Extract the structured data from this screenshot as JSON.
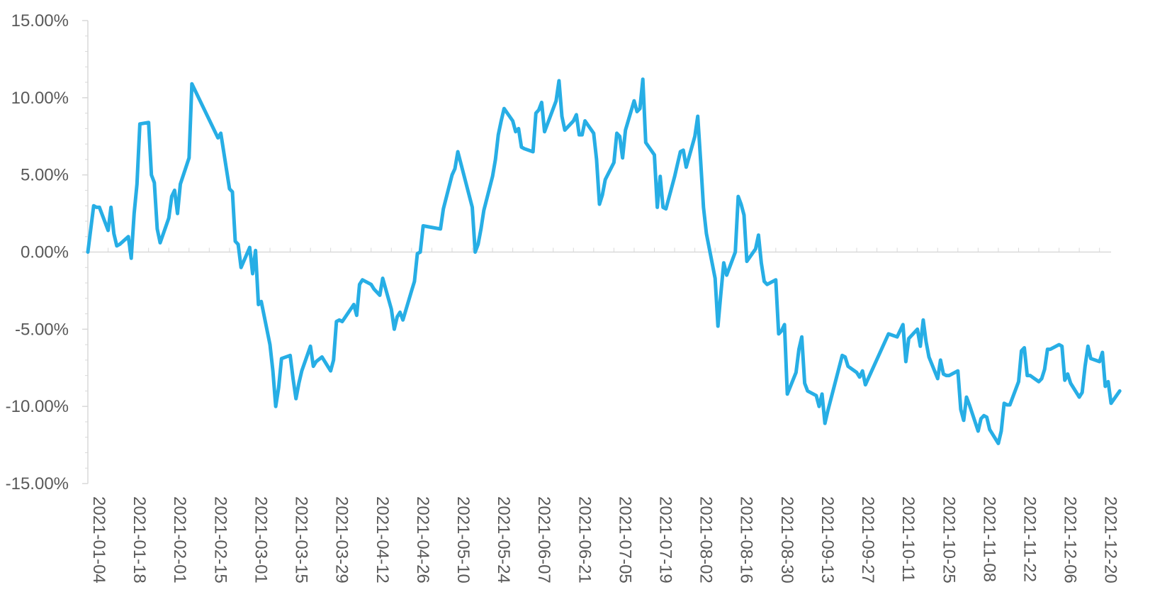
{
  "chart_data": {
    "type": "line",
    "title": "",
    "xlabel": "",
    "ylabel": "",
    "ylim": [
      -0.15,
      0.15
    ],
    "y_tick_values": [
      -0.15,
      -0.1,
      -0.05,
      0.0,
      0.05,
      0.1,
      0.15
    ],
    "y_tick_labels": [
      "-15.00%",
      "-10.00%",
      "-5.00%",
      "0.00%",
      "5.00%",
      "10.00%",
      "15.00%"
    ],
    "x_range": [
      "2021-01-04",
      "2021-12-24"
    ],
    "x_tick_labels": [
      "2021-01-04",
      "2021-01-18",
      "2021-02-01",
      "2021-02-15",
      "2021-03-01",
      "2021-03-15",
      "2021-03-29",
      "2021-04-12",
      "2021-04-26",
      "2021-05-10",
      "2021-05-24",
      "2021-06-07",
      "2021-06-21",
      "2021-07-05",
      "2021-07-19",
      "2021-08-02",
      "2021-08-16",
      "2021-08-30",
      "2021-09-13",
      "2021-09-27",
      "2021-10-11",
      "2021-10-25",
      "2021-11-08",
      "2021-11-22",
      "2021-12-06",
      "2021-12-20"
    ],
    "grid": false,
    "legend": "none",
    "color": "#27aee5",
    "series": [
      {
        "points": [
          [
            "2021-01-04",
            0.0
          ],
          [
            "2021-01-06",
            0.03
          ],
          [
            "2021-01-07",
            0.029
          ],
          [
            "2021-01-08",
            0.029
          ],
          [
            "2021-01-11",
            0.014
          ],
          [
            "2021-01-12",
            0.029
          ],
          [
            "2021-01-13",
            0.012
          ],
          [
            "2021-01-14",
            0.004
          ],
          [
            "2021-01-15",
            0.005
          ],
          [
            "2021-01-18",
            0.01
          ],
          [
            "2021-01-19",
            -0.004
          ],
          [
            "2021-01-20",
            0.025
          ],
          [
            "2021-01-21",
            0.044
          ],
          [
            "2021-01-22",
            0.083
          ],
          [
            "2021-01-25",
            0.084
          ],
          [
            "2021-01-26",
            0.05
          ],
          [
            "2021-01-27",
            0.045
          ],
          [
            "2021-01-28",
            0.015
          ],
          [
            "2021-01-29",
            0.006
          ],
          [
            "2021-02-01",
            0.022
          ],
          [
            "2021-02-02",
            0.036
          ],
          [
            "2021-02-03",
            0.04
          ],
          [
            "2021-02-04",
            0.025
          ],
          [
            "2021-02-05",
            0.044
          ],
          [
            "2021-02-08",
            0.061
          ],
          [
            "2021-02-09",
            0.109
          ],
          [
            "2021-02-18",
            0.074
          ],
          [
            "2021-02-19",
            0.077
          ],
          [
            "2021-02-22",
            0.041
          ],
          [
            "2021-02-23",
            0.039
          ],
          [
            "2021-02-24",
            0.007
          ],
          [
            "2021-02-25",
            0.005
          ],
          [
            "2021-02-26",
            -0.01
          ],
          [
            "2021-03-01",
            0.003
          ],
          [
            "2021-03-02",
            -0.014
          ],
          [
            "2021-03-03",
            0.001
          ],
          [
            "2021-03-04",
            -0.034
          ],
          [
            "2021-03-05",
            -0.032
          ],
          [
            "2021-03-08",
            -0.06
          ],
          [
            "2021-03-09",
            -0.077
          ],
          [
            "2021-03-10",
            -0.1
          ],
          [
            "2021-03-11",
            -0.088
          ],
          [
            "2021-03-12",
            -0.069
          ],
          [
            "2021-03-15",
            -0.067
          ],
          [
            "2021-03-16",
            -0.082
          ],
          [
            "2021-03-17",
            -0.095
          ],
          [
            "2021-03-18",
            -0.085
          ],
          [
            "2021-03-19",
            -0.077
          ],
          [
            "2021-03-22",
            -0.061
          ],
          [
            "2021-03-23",
            -0.074
          ],
          [
            "2021-03-24",
            -0.071
          ],
          [
            "2021-03-26",
            -0.068
          ],
          [
            "2021-03-29",
            -0.077
          ],
          [
            "2021-03-30",
            -0.07
          ],
          [
            "2021-03-31",
            -0.045
          ],
          [
            "2021-04-01",
            -0.044
          ],
          [
            "2021-04-02",
            -0.045
          ],
          [
            "2021-04-06",
            -0.034
          ],
          [
            "2021-04-07",
            -0.041
          ],
          [
            "2021-04-08",
            -0.021
          ],
          [
            "2021-04-09",
            -0.018
          ],
          [
            "2021-04-12",
            -0.021
          ],
          [
            "2021-04-13",
            -0.024
          ],
          [
            "2021-04-14",
            -0.026
          ],
          [
            "2021-04-15",
            -0.028
          ],
          [
            "2021-04-16",
            -0.017
          ],
          [
            "2021-04-19",
            -0.037
          ],
          [
            "2021-04-20",
            -0.05
          ],
          [
            "2021-04-21",
            -0.042
          ],
          [
            "2021-04-22",
            -0.039
          ],
          [
            "2021-04-23",
            -0.044
          ],
          [
            "2021-04-26",
            -0.025
          ],
          [
            "2021-04-27",
            -0.019
          ],
          [
            "2021-04-28",
            -0.001
          ],
          [
            "2021-04-29",
            0.0
          ],
          [
            "2021-04-30",
            0.017
          ],
          [
            "2021-05-06",
            0.015
          ],
          [
            "2021-05-07",
            0.028
          ],
          [
            "2021-05-10",
            0.05
          ],
          [
            "2021-05-11",
            0.054
          ],
          [
            "2021-05-12",
            0.065
          ],
          [
            "2021-05-17",
            0.029
          ],
          [
            "2021-05-18",
            0.0
          ],
          [
            "2021-05-19",
            0.005
          ],
          [
            "2021-05-20",
            0.015
          ],
          [
            "2021-05-21",
            0.027
          ],
          [
            "2021-05-24",
            0.049
          ],
          [
            "2021-05-25",
            0.06
          ],
          [
            "2021-05-26",
            0.076
          ],
          [
            "2021-05-27",
            0.085
          ],
          [
            "2021-05-28",
            0.093
          ],
          [
            "2021-05-31",
            0.085
          ],
          [
            "2021-06-01",
            0.078
          ],
          [
            "2021-06-02",
            0.08
          ],
          [
            "2021-06-03",
            0.068
          ],
          [
            "2021-06-04",
            0.067
          ],
          [
            "2021-06-07",
            0.065
          ],
          [
            "2021-06-08",
            0.09
          ],
          [
            "2021-06-09",
            0.092
          ],
          [
            "2021-06-10",
            0.097
          ],
          [
            "2021-06-11",
            0.078
          ],
          [
            "2021-06-15",
            0.098
          ],
          [
            "2021-06-16",
            0.111
          ],
          [
            "2021-06-17",
            0.088
          ],
          [
            "2021-06-18",
            0.079
          ],
          [
            "2021-06-21",
            0.085
          ],
          [
            "2021-06-22",
            0.089
          ],
          [
            "2021-06-23",
            0.076
          ],
          [
            "2021-06-24",
            0.076
          ],
          [
            "2021-06-25",
            0.085
          ],
          [
            "2021-06-28",
            0.077
          ],
          [
            "2021-06-29",
            0.06
          ],
          [
            "2021-06-30",
            0.031
          ],
          [
            "2021-07-01",
            0.037
          ],
          [
            "2021-07-02",
            0.047
          ],
          [
            "2021-07-05",
            0.058
          ],
          [
            "2021-07-06",
            0.077
          ],
          [
            "2021-07-07",
            0.075
          ],
          [
            "2021-07-08",
            0.061
          ],
          [
            "2021-07-09",
            0.079
          ],
          [
            "2021-07-12",
            0.098
          ],
          [
            "2021-07-13",
            0.091
          ],
          [
            "2021-07-14",
            0.093
          ],
          [
            "2021-07-15",
            0.112
          ],
          [
            "2021-07-16",
            0.071
          ],
          [
            "2021-07-19",
            0.063
          ],
          [
            "2021-07-20",
            0.029
          ],
          [
            "2021-07-21",
            0.049
          ],
          [
            "2021-07-22",
            0.029
          ],
          [
            "2021-07-23",
            0.028
          ],
          [
            "2021-07-26",
            0.049
          ],
          [
            "2021-07-27",
            0.057
          ],
          [
            "2021-07-28",
            0.065
          ],
          [
            "2021-07-29",
            0.066
          ],
          [
            "2021-07-30",
            0.055
          ],
          [
            "2021-08-02",
            0.075
          ],
          [
            "2021-08-03",
            0.088
          ],
          [
            "2021-08-04",
            0.059
          ],
          [
            "2021-08-05",
            0.029
          ],
          [
            "2021-08-06",
            0.012
          ],
          [
            "2021-08-09",
            -0.017
          ],
          [
            "2021-08-10",
            -0.048
          ],
          [
            "2021-08-11",
            -0.027
          ],
          [
            "2021-08-12",
            -0.007
          ],
          [
            "2021-08-13",
            -0.015
          ],
          [
            "2021-08-16",
            0.0
          ],
          [
            "2021-08-17",
            0.036
          ],
          [
            "2021-08-18",
            0.031
          ],
          [
            "2021-08-19",
            0.024
          ],
          [
            "2021-08-20",
            -0.006
          ],
          [
            "2021-08-23",
            0.002
          ],
          [
            "2021-08-24",
            0.011
          ],
          [
            "2021-08-25",
            -0.007
          ],
          [
            "2021-08-26",
            -0.019
          ],
          [
            "2021-08-27",
            -0.021
          ],
          [
            "2021-08-30",
            -0.018
          ],
          [
            "2021-08-31",
            -0.053
          ],
          [
            "2021-09-01",
            -0.051
          ],
          [
            "2021-09-02",
            -0.047
          ],
          [
            "2021-09-03",
            -0.092
          ],
          [
            "2021-09-06",
            -0.078
          ],
          [
            "2021-09-07",
            -0.063
          ],
          [
            "2021-09-08",
            -0.055
          ],
          [
            "2021-09-09",
            -0.085
          ],
          [
            "2021-09-10",
            -0.09
          ],
          [
            "2021-09-13",
            -0.093
          ],
          [
            "2021-09-14",
            -0.1
          ],
          [
            "2021-09-15",
            -0.092
          ],
          [
            "2021-09-16",
            -0.111
          ],
          [
            "2021-09-17",
            -0.103
          ],
          [
            "2021-09-22",
            -0.067
          ],
          [
            "2021-09-23",
            -0.068
          ],
          [
            "2021-09-24",
            -0.074
          ],
          [
            "2021-09-27",
            -0.078
          ],
          [
            "2021-09-28",
            -0.081
          ],
          [
            "2021-09-29",
            -0.077
          ],
          [
            "2021-09-30",
            -0.086
          ],
          [
            "2021-10-08",
            -0.053
          ],
          [
            "2021-10-11",
            -0.055
          ],
          [
            "2021-10-12",
            -0.051
          ],
          [
            "2021-10-13",
            -0.047
          ],
          [
            "2021-10-14",
            -0.071
          ],
          [
            "2021-10-15",
            -0.056
          ],
          [
            "2021-10-18",
            -0.05
          ],
          [
            "2021-10-19",
            -0.061
          ],
          [
            "2021-10-20",
            -0.044
          ],
          [
            "2021-10-21",
            -0.058
          ],
          [
            "2021-10-22",
            -0.068
          ],
          [
            "2021-10-25",
            -0.082
          ],
          [
            "2021-10-26",
            -0.07
          ],
          [
            "2021-10-27",
            -0.079
          ],
          [
            "2021-10-28",
            -0.08
          ],
          [
            "2021-10-29",
            -0.08
          ],
          [
            "2021-11-01",
            -0.077
          ],
          [
            "2021-11-02",
            -0.102
          ],
          [
            "2021-11-03",
            -0.109
          ],
          [
            "2021-11-04",
            -0.094
          ],
          [
            "2021-11-05",
            -0.099
          ],
          [
            "2021-11-08",
            -0.116
          ],
          [
            "2021-11-09",
            -0.108
          ],
          [
            "2021-11-10",
            -0.106
          ],
          [
            "2021-11-11",
            -0.107
          ],
          [
            "2021-11-12",
            -0.115
          ],
          [
            "2021-11-15",
            -0.124
          ],
          [
            "2021-11-16",
            -0.116
          ],
          [
            "2021-11-17",
            -0.098
          ],
          [
            "2021-11-18",
            -0.099
          ],
          [
            "2021-11-19",
            -0.099
          ],
          [
            "2021-11-22",
            -0.084
          ],
          [
            "2021-11-23",
            -0.064
          ],
          [
            "2021-11-24",
            -0.062
          ],
          [
            "2021-11-25",
            -0.08
          ],
          [
            "2021-11-26",
            -0.08
          ],
          [
            "2021-11-29",
            -0.084
          ],
          [
            "2021-11-30",
            -0.082
          ],
          [
            "2021-12-01",
            -0.076
          ],
          [
            "2021-12-02",
            -0.063
          ],
          [
            "2021-12-03",
            -0.063
          ],
          [
            "2021-12-06",
            -0.06
          ],
          [
            "2021-12-07",
            -0.061
          ],
          [
            "2021-12-08",
            -0.083
          ],
          [
            "2021-12-09",
            -0.079
          ],
          [
            "2021-12-10",
            -0.085
          ],
          [
            "2021-12-13",
            -0.094
          ],
          [
            "2021-12-14",
            -0.091
          ],
          [
            "2021-12-15",
            -0.074
          ],
          [
            "2021-12-16",
            -0.061
          ],
          [
            "2021-12-17",
            -0.069
          ],
          [
            "2021-12-20",
            -0.071
          ],
          [
            "2021-12-21",
            -0.065
          ],
          [
            "2021-12-22",
            -0.087
          ],
          [
            "2021-12-23",
            -0.084
          ],
          [
            "2021-12-24",
            -0.098
          ],
          [
            "2021-12-27",
            -0.09
          ]
        ]
      }
    ]
  }
}
